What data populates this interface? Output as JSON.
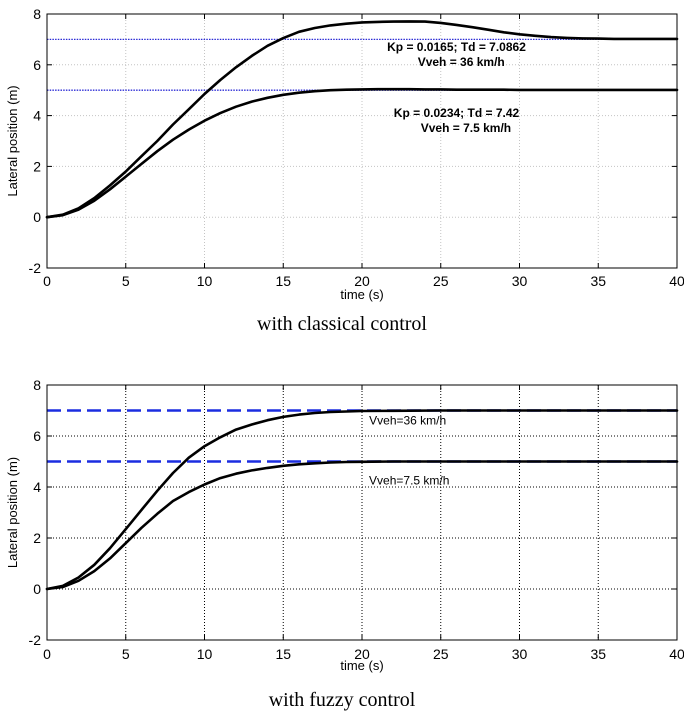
{
  "chart_data": [
    {
      "type": "line",
      "xlabel": "time (s)",
      "ylabel": "Lateral position (m)",
      "xlim": [
        0,
        40
      ],
      "ylim": [
        -2,
        8
      ],
      "xticks": [
        0,
        5,
        10,
        15,
        20,
        25,
        30,
        35,
        40
      ],
      "yticks": [
        -2,
        0,
        2,
        4,
        6,
        8
      ],
      "grid": true,
      "caption": "with classical control",
      "reference_lines": [
        7,
        5
      ],
      "series": [
        {
          "x": [
            0,
            1,
            2,
            3,
            4,
            5,
            6,
            7,
            8,
            9,
            10,
            11,
            12,
            13,
            14,
            15,
            16,
            17,
            18,
            19,
            20,
            21,
            22,
            23,
            24,
            25,
            26,
            27,
            28,
            29,
            30,
            31,
            32,
            33,
            34,
            35,
            36,
            37,
            38,
            39,
            40
          ],
          "y": [
            0,
            0.1,
            0.35,
            0.75,
            1.25,
            1.8,
            2.4,
            3.0,
            3.65,
            4.25,
            4.85,
            5.4,
            5.9,
            6.35,
            6.75,
            7.05,
            7.3,
            7.45,
            7.55,
            7.62,
            7.67,
            7.69,
            7.7,
            7.71,
            7.7,
            7.65,
            7.57,
            7.48,
            7.38,
            7.28,
            7.2,
            7.14,
            7.09,
            7.06,
            7.04,
            7.03,
            7.02,
            7.02,
            7.02,
            7.02,
            7.02
          ]
        },
        {
          "x": [
            0,
            1,
            2,
            3,
            4,
            5,
            6,
            7,
            8,
            9,
            10,
            11,
            12,
            13,
            14,
            15,
            16,
            17,
            18,
            19,
            20,
            21,
            22,
            23,
            24,
            25,
            26,
            27,
            28,
            29,
            30,
            31,
            32,
            33,
            34,
            35,
            36,
            37,
            38,
            39,
            40
          ],
          "y": [
            0,
            0.08,
            0.3,
            0.65,
            1.1,
            1.6,
            2.1,
            2.6,
            3.05,
            3.45,
            3.8,
            4.1,
            4.35,
            4.55,
            4.7,
            4.82,
            4.9,
            4.96,
            5.0,
            5.02,
            5.03,
            5.04,
            5.04,
            5.04,
            5.03,
            5.03,
            5.02,
            5.02,
            5.02,
            5.02,
            5.01,
            5.01,
            5.01,
            5.01,
            5.01,
            5.01,
            5.01,
            5.01,
            5.01,
            5.01,
            5.01
          ]
        }
      ],
      "annotations": [
        {
          "text": "Kp = 0.0165; Td = 7.0862",
          "x": 26.0,
          "y": 6.55
        },
        {
          "text": "Vveh = 36 km/h",
          "x": 26.3,
          "y": 5.95
        },
        {
          "text": "Kp = 0.0234; Td = 7.42",
          "x": 26.0,
          "y": 3.95
        },
        {
          "text": "Vveh = 7.5 km/h",
          "x": 26.6,
          "y": 3.35
        }
      ]
    },
    {
      "type": "line",
      "xlabel": "time (s)",
      "ylabel": "Lateral position (m)",
      "xlim": [
        0,
        40
      ],
      "ylim": [
        -2,
        8
      ],
      "xticks": [
        0,
        5,
        10,
        15,
        20,
        25,
        30,
        35,
        40
      ],
      "yticks": [
        -2,
        0,
        2,
        4,
        6,
        8
      ],
      "grid": true,
      "caption": "with fuzzy control",
      "reference_lines": [
        7,
        5
      ],
      "series": [
        {
          "x": [
            0,
            1,
            2,
            3,
            4,
            5,
            6,
            7,
            8,
            9,
            10,
            11,
            12,
            13,
            14,
            15,
            16,
            17,
            18,
            19,
            20,
            22,
            25,
            28,
            30,
            35,
            40
          ],
          "y": [
            0,
            0.12,
            0.45,
            0.95,
            1.6,
            2.35,
            3.1,
            3.85,
            4.55,
            5.15,
            5.6,
            5.95,
            6.25,
            6.45,
            6.62,
            6.75,
            6.84,
            6.9,
            6.94,
            6.96,
            6.98,
            6.99,
            7.0,
            7.0,
            7.0,
            7.0,
            7.0
          ]
        },
        {
          "x": [
            0,
            1,
            2,
            3,
            4,
            5,
            6,
            7,
            8,
            9,
            10,
            11,
            12,
            13,
            14,
            15,
            16,
            17,
            18,
            19,
            20,
            22,
            25,
            28,
            30,
            35,
            40
          ],
          "y": [
            0,
            0.08,
            0.32,
            0.7,
            1.2,
            1.8,
            2.4,
            2.95,
            3.45,
            3.8,
            4.1,
            4.35,
            4.52,
            4.65,
            4.75,
            4.83,
            4.89,
            4.93,
            4.96,
            4.98,
            4.99,
            5.0,
            5.0,
            5.0,
            5.0,
            5.0,
            5.0
          ]
        }
      ],
      "annotations": [
        {
          "text": "Vveh=36 km/h",
          "x": 22.9,
          "y": 6.45
        },
        {
          "text": "Vveh=7.5 km/h",
          "x": 23.0,
          "y": 4.1
        }
      ]
    }
  ]
}
